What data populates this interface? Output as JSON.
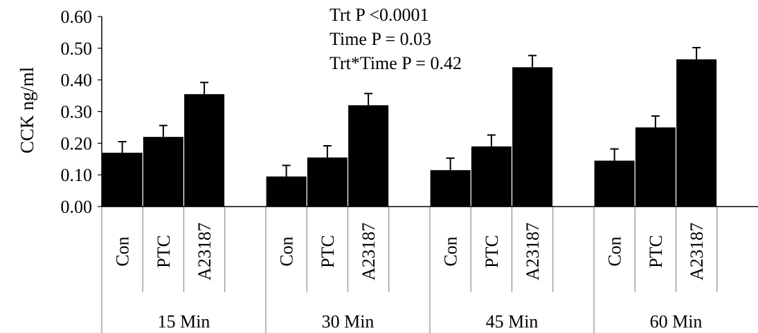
{
  "chart_data": {
    "type": "bar",
    "ylabel": "CCK  ng/ml",
    "ylim": [
      0,
      0.6
    ],
    "yticks": [
      "0.00",
      "0.10",
      "0.20",
      "0.30",
      "0.40",
      "0.50",
      "0.60"
    ],
    "groups": [
      {
        "label": "15 Min",
        "bars": [
          {
            "label": "Con",
            "value": 0.17,
            "error": 0.035
          },
          {
            "label": "PTC",
            "value": 0.22,
            "error": 0.036
          },
          {
            "label": "A23187",
            "value": 0.355,
            "error": 0.037
          }
        ]
      },
      {
        "label": "30 Min",
        "bars": [
          {
            "label": "Con",
            "value": 0.095,
            "error": 0.035
          },
          {
            "label": "PTC",
            "value": 0.155,
            "error": 0.037
          },
          {
            "label": "A23187",
            "value": 0.32,
            "error": 0.037
          }
        ]
      },
      {
        "label": "45 Min",
        "bars": [
          {
            "label": "Con",
            "value": 0.115,
            "error": 0.038
          },
          {
            "label": "PTC",
            "value": 0.19,
            "error": 0.036
          },
          {
            "label": "A23187",
            "value": 0.44,
            "error": 0.037
          }
        ]
      },
      {
        "label": "60 Min",
        "bars": [
          {
            "label": "Con",
            "value": 0.145,
            "error": 0.037
          },
          {
            "label": "PTC",
            "value": 0.25,
            "error": 0.036
          },
          {
            "label": "A23187",
            "value": 0.465,
            "error": 0.037
          }
        ]
      }
    ],
    "annotations": [
      "Trt P <0.0001",
      "Time P = 0.03",
      "Trt*Time P = 0.42"
    ],
    "colors": {
      "bar": "#000000",
      "axis": "#000000",
      "divider": "#8c8c8c"
    }
  }
}
